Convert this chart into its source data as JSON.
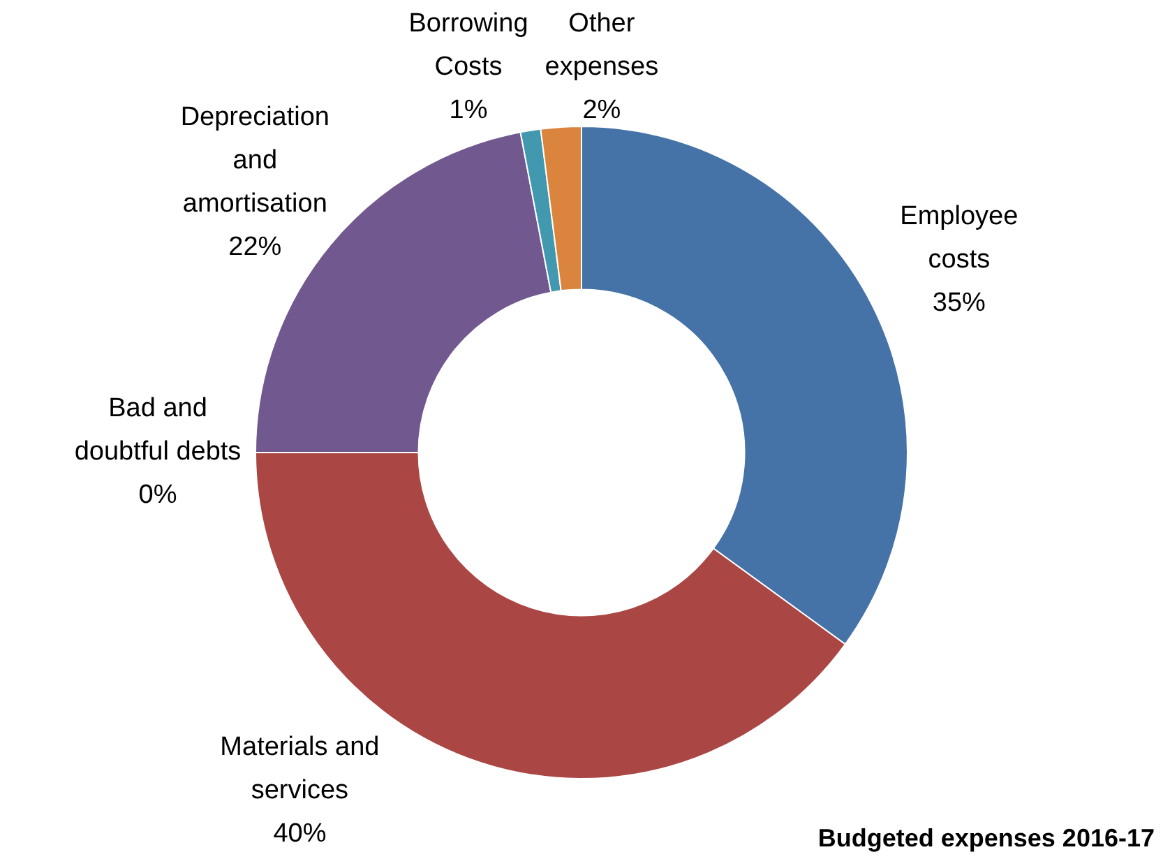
{
  "chart_data": {
    "type": "donut",
    "title": "Budgeted expenses 2016-17",
    "categories": [
      "Employee costs",
      "Materials and services",
      "Bad and doubtful debts",
      "Depreciation and amortisation",
      "Borrowing Costs",
      "Other expenses"
    ],
    "values": [
      35,
      40,
      0,
      22,
      1,
      2
    ],
    "colors": [
      "#4572a7",
      "#aa4643",
      "#89a54e",
      "#71588f",
      "#4198af",
      "#db843d"
    ],
    "value_labels": [
      "35%",
      "40%",
      "0%",
      "22%",
      "1%",
      "2%"
    ],
    "legend": false
  }
}
